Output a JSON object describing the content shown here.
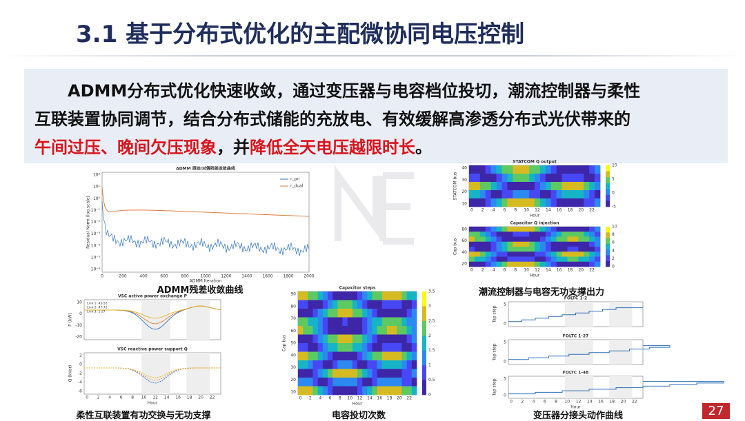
{
  "header": {
    "title": "3.1 基于分布式优化的主配微协同电压控制"
  },
  "summary": {
    "line1": "ADMM分布式优化快速收敛，通过变压器与电容档位投切，潮流控制器与柔性",
    "line2": "互联装置协同调节，结合分布式储能的充放电、有效缓解高渗透分布式光伏带来的",
    "line3": [
      {
        "text": "午间过压、晚间欠压现象",
        "emphasis": true
      },
      {
        "text": "，并",
        "emphasis": false
      },
      {
        "text": "降低全天电压越限时长",
        "emphasis": true
      },
      {
        "text": "。",
        "emphasis": false
      }
    ]
  },
  "hour_ticks": [
    0,
    2,
    4,
    6,
    8,
    10,
    12,
    14,
    16,
    18,
    20,
    22
  ],
  "figures": [
    {
      "title": "ADMM 原始/对偶残差收敛曲线",
      "xlabel": "ADMM Iteration",
      "ylabel": "Residual Norm (log scale)",
      "xticks": [
        0,
        200,
        400,
        600,
        800,
        1000,
        1200,
        1400,
        1600,
        1800,
        2000
      ],
      "yticks": [
        "10²",
        "10¹",
        "10⁰",
        "10⁻¹",
        "10⁻²",
        "10⁻³",
        "10⁻⁴",
        "10⁻⁵",
        "10⁻⁶"
      ],
      "legend": [
        "r_pri",
        "r_dual"
      ],
      "caption": "ADMM残差收敛曲线"
    },
    {
      "title": "STATCOM Q output",
      "xlabel": "Hour",
      "ylabel": "STATCOM bus",
      "yticks": [
        40,
        30,
        20,
        10
      ],
      "colorbar": [
        10,
        5,
        0,
        -5
      ]
    },
    {
      "title": "Capacitor Q injection",
      "xlabel": "Hour",
      "ylabel": "Cap bus",
      "yticks": [
        80,
        60,
        40,
        20
      ],
      "colorbar": [
        10,
        8,
        6,
        4,
        2,
        0
      ],
      "caption": "潮流控制器与电容无功支撑出力"
    },
    {
      "panels": [
        {
          "title": "VSC active power exchange P",
          "ylabel": "P (kW)",
          "yticks": [
            10,
            0,
            -10,
            -20
          ],
          "legend": [
            "Link 1: 45-52",
            "Link 2: 47-72",
            "Link 3: 1-27"
          ]
        },
        {
          "title": "VSC reactive power support Q",
          "ylabel": "Q (kVar)",
          "yticks": [
            2,
            0,
            -2,
            -4,
            -6
          ],
          "xlabel": "Hour"
        }
      ],
      "caption": "柔性互联装置有功交换与无功支撑"
    },
    {
      "title": "Capacitor steps",
      "xlabel": "Hour",
      "ylabel": "Cap bus",
      "yticks": [
        90,
        80,
        70,
        60,
        50,
        40,
        30,
        20,
        10
      ],
      "colorbar": [
        3.5,
        3,
        2.5,
        2,
        1.5,
        1,
        0.5,
        0
      ],
      "caption": "电容投切次数"
    },
    {
      "panels": [
        {
          "title": "FOLTC 1-2",
          "ylabel": "Tap step",
          "yticks": [
            5,
            0
          ]
        },
        {
          "title": "FOLTC 1-27",
          "ylabel": "Tap step",
          "yticks": [
            5,
            0
          ]
        },
        {
          "title": "FOLTC 1-48",
          "ylabel": "Tap step",
          "yticks": [
            5,
            0
          ],
          "xlabel": "Hour"
        }
      ],
      "caption": "变压器分接头动作曲线"
    }
  ],
  "page_number": "27"
}
